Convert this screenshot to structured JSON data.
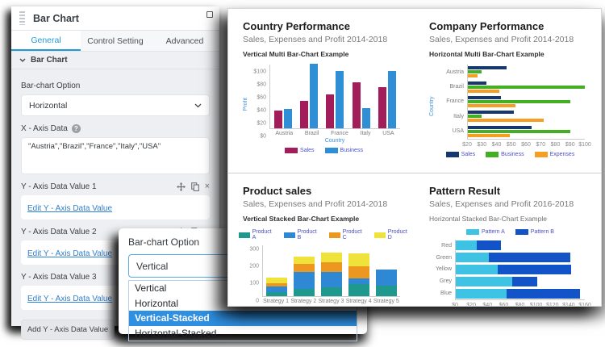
{
  "colors": {
    "accent_blue": "#1e9ad6",
    "link_blue": "#2e7fd0",
    "option_highlight": "#2f8fe0",
    "legend_text": "#4a4ec9",
    "axis_text": "#8a8a8a",
    "axis_title": "#3d8fd8"
  },
  "panel": {
    "title": "Bar Chart",
    "tabs": [
      {
        "label": "General",
        "active": true
      },
      {
        "label": "Control Setting",
        "active": false
      },
      {
        "label": "Advanced",
        "active": false
      }
    ],
    "accordion_title": "Bar Chart",
    "fields": {
      "bar_chart_option_label": "Bar-chart Option",
      "bar_chart_option_value": "Horizontal",
      "x_axis_label": "X - Axis Data",
      "x_axis_value": "\"Austria\",\"Brazil\",\"France\",\"Italy\",\"USA\""
    },
    "y_blocks": [
      {
        "label": "Y - Axis Data Value 1",
        "link": "Edit Y - Axis Data Value"
      },
      {
        "label": "Y - Axis Data Value 2",
        "link": "Edit Y - Axis Data Value"
      },
      {
        "label": "Y - Axis Data Value 3",
        "link": "Edit Y - Axis Data Value"
      }
    ],
    "add_button_label": "Add Y - Axis Data Value"
  },
  "popup": {
    "label": "Bar-chart Option",
    "selected_value": "Vertical",
    "options": [
      "Vertical",
      "Horizontal",
      "Vertical-Stacked",
      "Horizontal-Stacked"
    ],
    "highlighted_option": "Vertical-Stacked"
  },
  "chart_data": [
    {
      "type": "bar",
      "orientation": "vertical",
      "stacked": false,
      "title": "Country Performance",
      "subtitle": "Sales, Expenses and Profit 2014-2018",
      "example_label": "Vertical Multi Bar-Chart Example",
      "xlabel": "Country",
      "ylabel": "Profit",
      "categories": [
        "Austria",
        "Brazil",
        "France",
        "Italy",
        "USA"
      ],
      "series": [
        {
          "name": "Sales",
          "color": "#a21d59",
          "values": [
            27,
            43,
            53,
            71,
            64
          ]
        },
        {
          "name": "Business",
          "color": "#2f8fd6",
          "values": [
            30,
            100,
            89,
            31,
            89
          ]
        }
      ],
      "ylim": [
        0,
        100
      ],
      "yticks": [
        "$0",
        "$20",
        "$40",
        "$60",
        "$80",
        "$100"
      ],
      "grid": false,
      "legend_position": "bottom"
    },
    {
      "type": "bar",
      "orientation": "horizontal",
      "stacked": false,
      "title": "Company Performance",
      "subtitle": "Sales, Expenses and Profit 2014-2018",
      "example_label": "Horizontal Multi Bar-Chart Example",
      "ylabel": "Country",
      "categories": [
        "Austria",
        "Brazil",
        "France",
        "Italy",
        "USA"
      ],
      "series": [
        {
          "name": "Sales",
          "color": "#17386e",
          "values": [
            47,
            33,
            43,
            52,
            64
          ]
        },
        {
          "name": "Business",
          "color": "#43af22",
          "values": [
            30,
            100,
            90,
            30,
            90
          ]
        },
        {
          "name": "Expenses",
          "color": "#f59e22",
          "values": [
            27,
            42,
            53,
            72,
            49
          ]
        }
      ],
      "xlim": [
        20,
        100
      ],
      "xticks": [
        "$20",
        "$30",
        "$40",
        "$50",
        "$60",
        "$70",
        "$80",
        "$90",
        "$100"
      ],
      "grid": false,
      "legend_position": "bottom"
    },
    {
      "type": "bar",
      "orientation": "vertical",
      "stacked": true,
      "title": "Product sales",
      "subtitle": "Sales, Expenses and Profit 2014-2018",
      "example_label": "Vertical Stacked Bar-Chart Example",
      "categories": [
        "Strategy 1",
        "Strategy 2",
        "Strategy 3",
        "Strategy 4",
        "Strategy 5"
      ],
      "series": [
        {
          "name": "Product A",
          "color": "#1f998d",
          "values": [
            25,
            40,
            52,
            70,
            62
          ]
        },
        {
          "name": "Product B",
          "color": "#2e88d4",
          "values": [
            33,
            100,
            90,
            32,
            93
          ]
        },
        {
          "name": "Product C",
          "color": "#ec9820",
          "values": [
            17,
            47,
            57,
            72,
            0
          ]
        },
        {
          "name": "Product D",
          "color": "#efe23b",
          "values": [
            35,
            43,
            53,
            73,
            0
          ]
        }
      ],
      "ylim": [
        0,
        300
      ],
      "yticks": [
        "0",
        "100",
        "200",
        "300"
      ],
      "grid": false,
      "legend_position": "top"
    },
    {
      "type": "bar",
      "orientation": "horizontal",
      "stacked": true,
      "title": "Pattern Result",
      "subtitle": "Sales, Expenses and Profit 2016-2018",
      "example_label": "Horizontal Stacked Bar-Chart Example",
      "categories": [
        "Red",
        "Green",
        "Yellow",
        "Grey",
        "Blue"
      ],
      "series": [
        {
          "name": "Pattern A",
          "color": "#3fc3e4",
          "values": [
            27,
            42,
            53,
            71,
            64
          ]
        },
        {
          "name": "Pattern B",
          "color": "#1353c8",
          "values": [
            30,
            100,
            90,
            30,
            90
          ]
        }
      ],
      "xlim": [
        0,
        160
      ],
      "xticks": [
        "$0",
        "$20",
        "$40",
        "$60",
        "$80",
        "$100",
        "$120",
        "$140",
        "$160"
      ],
      "grid": false,
      "legend_position": "top"
    }
  ]
}
